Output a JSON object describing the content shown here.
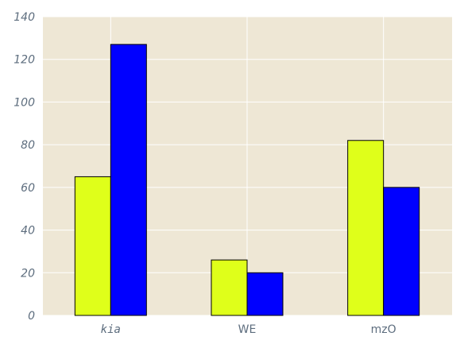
{
  "chart_data": {
    "type": "bar",
    "title": "",
    "xlabel": "",
    "ylabel": "",
    "categories": [
      "kia",
      "WE",
      "mzO"
    ],
    "series": [
      {
        "color": "#dfff1a",
        "values": [
          65,
          26,
          82
        ]
      },
      {
        "color": "#0000ff",
        "values": [
          127,
          20,
          60
        ]
      }
    ],
    "ylim": [
      0,
      140
    ],
    "yticks": [
      "0",
      "20",
      "40",
      "60",
      "80",
      "100",
      "120",
      "140"
    ],
    "ytick_values": [
      0,
      20,
      40,
      60,
      80,
      100,
      120,
      140
    ],
    "grid": true,
    "legend": "none",
    "background_color": "#eee7d5",
    "grid_color": "#ffffff",
    "tick_label_color": "#5d6d7e",
    "bar_edge_color": "#000000"
  }
}
